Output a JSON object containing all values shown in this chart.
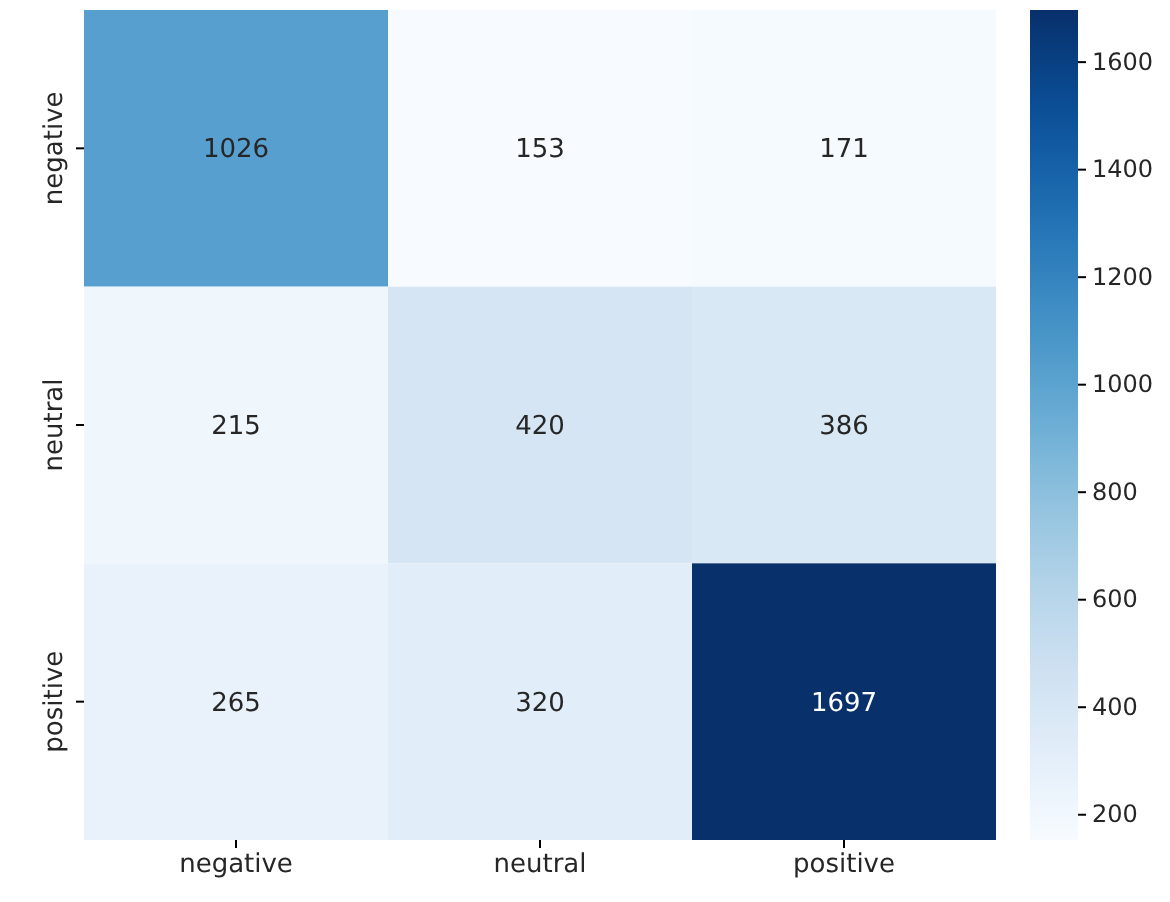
{
  "chart_data": {
    "type": "heatmap",
    "categories": [
      "negative",
      "neutral",
      "positive"
    ],
    "y_categories": [
      "negative",
      "neutral",
      "positive"
    ],
    "cells": [
      [
        1026,
        153,
        171
      ],
      [
        215,
        420,
        386
      ],
      [
        265,
        320,
        1697
      ]
    ],
    "clim": [
      153,
      1697
    ],
    "cticks": [
      200,
      400,
      600,
      800,
      1000,
      1200,
      1400,
      1600
    ],
    "data_labels": true
  }
}
